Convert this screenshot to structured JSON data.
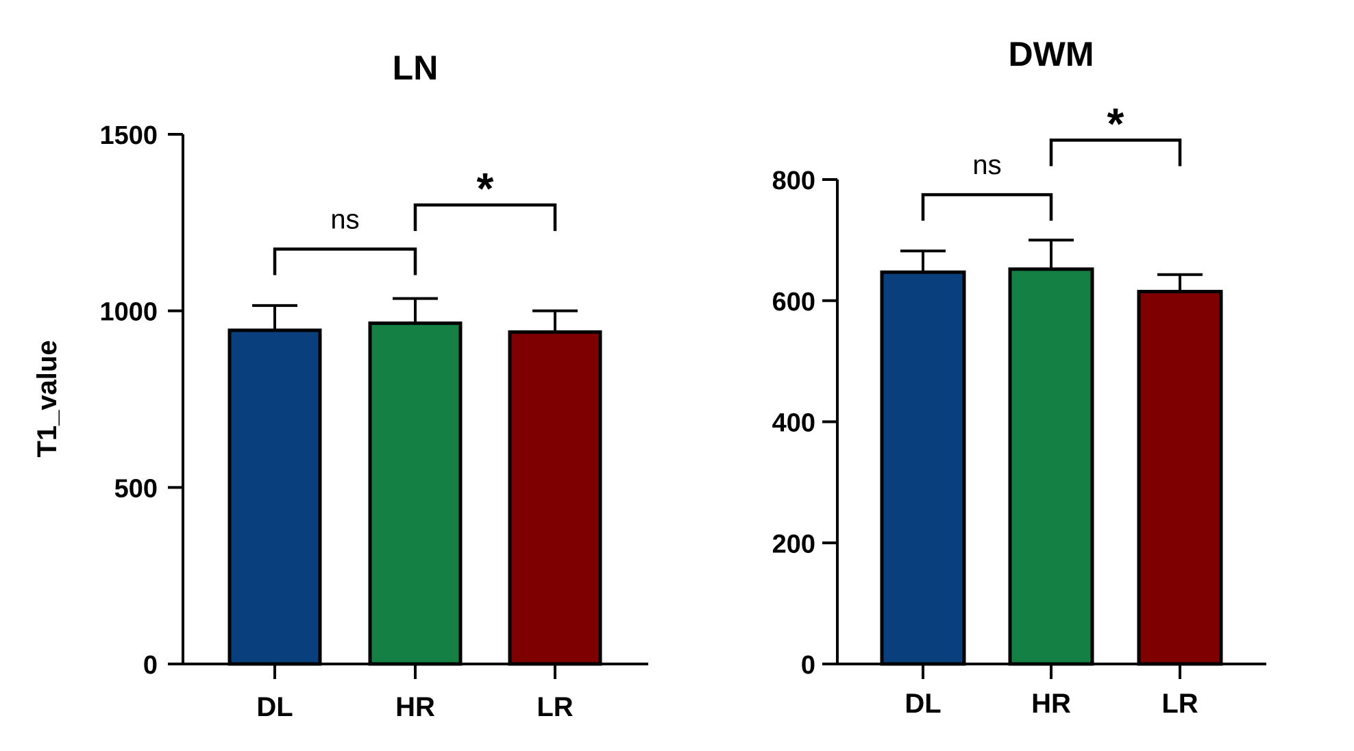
{
  "chart_data": [
    {
      "type": "bar",
      "title": "LN",
      "xlabel": "",
      "ylabel": "T1_value",
      "categories": [
        "DL",
        "HR",
        "LR"
      ],
      "values": [
        945,
        965,
        940
      ],
      "errors": [
        70,
        70,
        60
      ],
      "colors": [
        "#0a3f7e",
        "#158043",
        "#7e0000"
      ],
      "ylim": [
        0,
        1500
      ],
      "yticks": [
        0,
        500,
        1000,
        1500
      ],
      "ytick_labels": [
        "0",
        "500",
        "1000",
        "1500"
      ],
      "significance": [
        {
          "from": 0,
          "to": 1,
          "label": "ns",
          "y": 1175
        },
        {
          "from": 1,
          "to": 2,
          "label": "*",
          "y": 1300
        }
      ]
    },
    {
      "type": "bar",
      "title": "DWM",
      "xlabel": "",
      "ylabel": "",
      "categories": [
        "DL",
        "HR",
        "LR"
      ],
      "values": [
        647,
        652,
        615
      ],
      "errors": [
        35,
        48,
        28
      ],
      "colors": [
        "#0a3f7e",
        "#158043",
        "#7e0000"
      ],
      "ylim": [
        0,
        800
      ],
      "yticks": [
        0,
        200,
        400,
        600,
        800
      ],
      "ytick_labels": [
        "0",
        "200",
        "400",
        "600",
        "800"
      ],
      "significance": [
        {
          "from": 0,
          "to": 1,
          "label": "ns",
          "y": 775
        },
        {
          "from": 1,
          "to": 2,
          "label": "*",
          "y": 865
        }
      ]
    }
  ]
}
